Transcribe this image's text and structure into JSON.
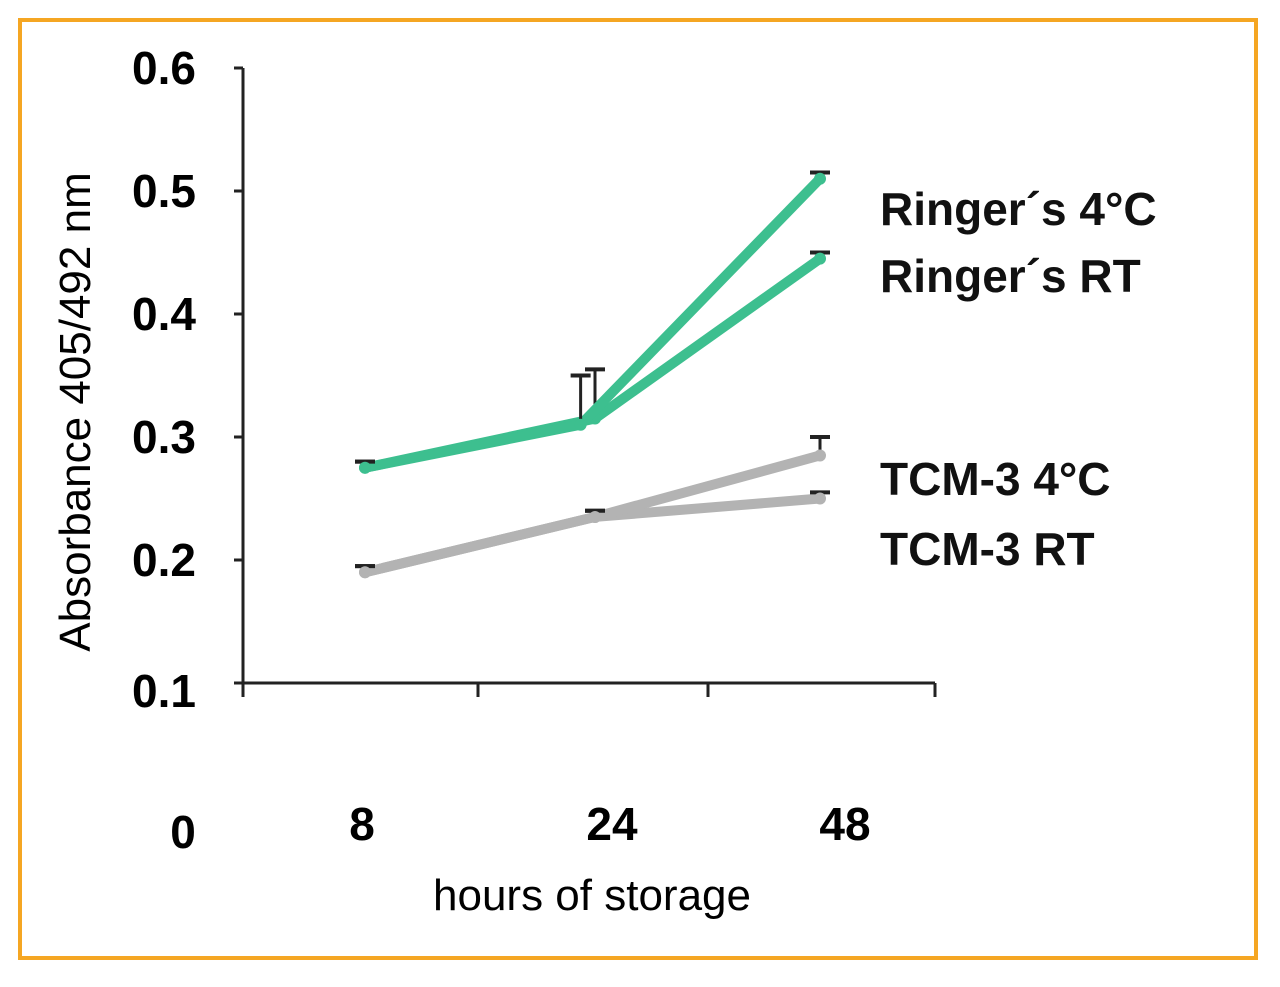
{
  "chart_data": {
    "type": "line",
    "xlabel": "hours of storage",
    "ylabel": "Absorbance  405/492 nm",
    "x_origin_label": "0",
    "categories": [
      "8",
      "24",
      "48"
    ],
    "ylim": [
      0.1,
      0.6
    ],
    "yticks": [
      "0.1",
      "0.2",
      "0.3",
      "0.4",
      "0.5",
      "0.6"
    ],
    "grid": false,
    "legend_placement": "right, inline labels",
    "series": [
      {
        "name": "Ringer´s 4°C",
        "color": "#3dbf8f",
        "values": [
          0.275,
          0.31,
          0.51
        ],
        "errors": [
          0.005,
          0.04,
          0.005
        ],
        "x_positions": [
          8,
          23,
          48
        ]
      },
      {
        "name": "Ringer´s RT",
        "color": "#3dbf8f",
        "values": [
          0.275,
          0.315,
          0.445
        ],
        "errors": [
          0.005,
          0.04,
          0.005
        ],
        "x_positions": [
          8,
          24,
          48
        ]
      },
      {
        "name": "TCM-3 4°C",
        "color": "#b3b3b3",
        "values": [
          0.19,
          0.235,
          0.285
        ],
        "errors": [
          0.005,
          0.005,
          0.015
        ],
        "x_positions": [
          8,
          24,
          48
        ]
      },
      {
        "name": "TCM-3 RT",
        "color": "#b3b3b3",
        "values": [
          0.19,
          0.235,
          0.25
        ],
        "errors": [
          0.005,
          0.005,
          0.005
        ],
        "x_positions": [
          8,
          24,
          48
        ]
      }
    ]
  }
}
